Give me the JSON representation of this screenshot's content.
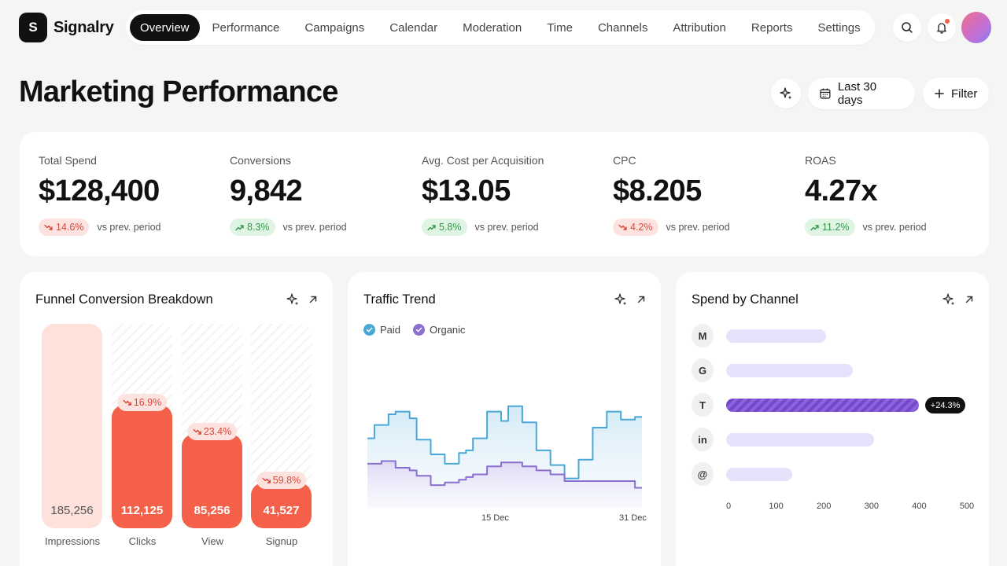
{
  "brand": {
    "initial": "S",
    "name": "Signalry"
  },
  "nav": [
    {
      "label": "Overview",
      "active": true
    },
    {
      "label": "Performance"
    },
    {
      "label": "Campaigns"
    },
    {
      "label": "Calendar"
    },
    {
      "label": "Moderation"
    },
    {
      "label": "Time"
    },
    {
      "label": "Channels"
    },
    {
      "label": "Attribution"
    },
    {
      "label": "Reports"
    },
    {
      "label": "Settings"
    }
  ],
  "header": {
    "title": "Marketing Performance",
    "date_range": "Last 30 days",
    "filter": "Filter"
  },
  "kpis": [
    {
      "label": "Total Spend",
      "value": "$128,400",
      "change": "14.6%",
      "direction": "down",
      "note": "vs prev. period"
    },
    {
      "label": "Conversions",
      "value": "9,842",
      "change": "8.3%",
      "direction": "up",
      "note": "vs prev. period"
    },
    {
      "label": "Avg. Cost per Acquisition",
      "value": "$13.05",
      "change": "5.8%",
      "direction": "up",
      "note": "vs prev. period"
    },
    {
      "label": "CPC",
      "value": "$8.205",
      "change": "4.2%",
      "direction": "down",
      "note": "vs prev. period"
    },
    {
      "label": "ROAS",
      "value": "4.27x",
      "change": "11.2%",
      "direction": "up",
      "note": "vs prev. period"
    }
  ],
  "funnel": {
    "title": "Funnel Conversion Breakdown",
    "stages": [
      {
        "label": "Impressions",
        "value": "185,256",
        "drop": null
      },
      {
        "label": "Clicks",
        "value": "112,125",
        "drop": "16.9%"
      },
      {
        "label": "View",
        "value": "85,256",
        "drop": "23.4%"
      },
      {
        "label": "Signup",
        "value": "41,527",
        "drop": "59.8%"
      }
    ]
  },
  "traffic": {
    "title": "Traffic Trend",
    "legend": [
      "Paid",
      "Organic"
    ]
  },
  "spend": {
    "title": "Spend by Channel",
    "channels": [
      {
        "label": "M"
      },
      {
        "label": "G"
      },
      {
        "label": "T",
        "tag": "+24.3%"
      },
      {
        "label": "in"
      },
      {
        "label": "@"
      }
    ]
  },
  "chart_data": [
    {
      "type": "bar",
      "categories": [
        "Impressions",
        "Clicks",
        "View",
        "Signup"
      ],
      "values": [
        185256,
        112125,
        85256,
        41527
      ],
      "annotations": [
        "",
        "16.9%",
        "23.4%",
        "59.8%"
      ],
      "title": "Funnel Conversion Breakdown"
    },
    {
      "type": "line",
      "title": "Traffic Trend",
      "x_ticks": [
        "15 Dec",
        "31 Dec"
      ],
      "series": [
        {
          "name": "Paid",
          "color": "#4aa8d8",
          "values": [
            52,
            62,
            62,
            70,
            72,
            72,
            67,
            51,
            51,
            40,
            40,
            33,
            33,
            41,
            43,
            52,
            52,
            72,
            72,
            65,
            76,
            76,
            64,
            64,
            43,
            43,
            32,
            32,
            22,
            22,
            36,
            36,
            60,
            60,
            72,
            72,
            66,
            66,
            68
          ]
        },
        {
          "name": "Organic",
          "color": "#8b6fd0",
          "values": [
            33,
            33,
            35,
            35,
            30,
            30,
            28,
            24,
            24,
            17,
            17,
            19,
            19,
            21,
            23,
            25,
            25,
            31,
            31,
            34,
            34,
            34,
            31,
            31,
            28,
            28,
            25,
            25,
            20,
            20,
            20,
            20,
            20,
            20,
            20,
            20,
            20,
            20,
            15
          ]
        }
      ]
    },
    {
      "type": "bar",
      "orientation": "horizontal",
      "title": "Spend by Channel",
      "categories": [
        "M",
        "G",
        "T",
        "in",
        "@"
      ],
      "values": [
        212,
        268,
        408,
        314,
        140
      ],
      "xlim": [
        0,
        500
      ],
      "x_ticks": [
        0,
        100,
        200,
        300,
        400,
        500
      ],
      "highlight": "T",
      "highlight_label": "+24.3%"
    }
  ],
  "colors": {
    "accent": "#f4604a",
    "accent_light": "#fde1da",
    "paid": "#4aa8d8",
    "organic": "#8b6fd0",
    "purple_bar": "#7a4cd0"
  }
}
